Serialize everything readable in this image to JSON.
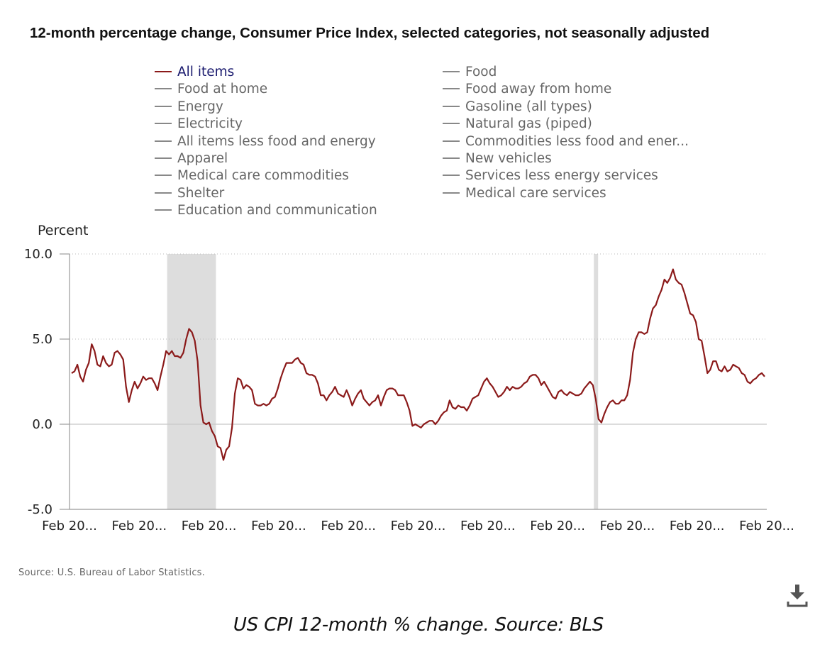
{
  "title": "12-month percentage change, Consumer Price Index, selected categories, not seasonally adjusted",
  "legend": {
    "left": [
      "All items",
      "Food at home",
      "Energy",
      "Electricity",
      "All items less food and energy",
      "Apparel",
      "Medical care commodities",
      "Shelter",
      "Education and communication"
    ],
    "right": [
      "Food",
      "Food away from home",
      "Gasoline (all types)",
      "Natural gas (piped)",
      "Commodities less food and ener...",
      "New vehicles",
      "Services less energy services",
      "Medical care services"
    ],
    "active": "All items"
  },
  "colors": {
    "series": "#8b1a1a",
    "inactive": "#888888",
    "recession": "#dddddd",
    "axis": "#bbbbbb",
    "active_text": "#1a1a6e"
  },
  "source": "Source: U.S. Bureau of Labor Statistics.",
  "caption": "US CPI 12-month % change. Source: BLS",
  "download_icon": "download-icon",
  "chart_data": {
    "type": "line",
    "ylabel": "Percent",
    "ylim": [
      -5,
      10
    ],
    "yticks": [
      "10.0",
      "5.0",
      "0.0",
      "-5.0"
    ],
    "ytick_values": [
      10,
      5,
      0,
      -5
    ],
    "grid": "dotted horizontal",
    "x_tick_labels": [
      "Feb 20...",
      "Feb 20...",
      "Feb 20...",
      "Feb 20...",
      "Feb 20...",
      "Feb 20...",
      "Feb 20...",
      "Feb 20...",
      "Feb 20...",
      "Feb 20...",
      "Feb 20..."
    ],
    "recession_bands": [
      [
        0.14,
        0.21
      ],
      [
        0.752,
        0.758
      ]
    ],
    "series": [
      {
        "name": "All items",
        "values": [
          3.0,
          3.1,
          3.5,
          2.8,
          2.5,
          3.2,
          3.6,
          4.7,
          4.3,
          3.5,
          3.4,
          4.0,
          3.6,
          3.4,
          3.5,
          4.2,
          4.3,
          4.1,
          3.8,
          2.2,
          1.3,
          2.0,
          2.5,
          2.1,
          2.4,
          2.8,
          2.6,
          2.7,
          2.7,
          2.4,
          2.0,
          2.8,
          3.5,
          4.3,
          4.1,
          4.3,
          4.0,
          4.0,
          3.9,
          4.2,
          5.0,
          5.6,
          5.4,
          4.9,
          3.7,
          1.1,
          0.1,
          0.0,
          0.1,
          -0.4,
          -0.7,
          -1.3,
          -1.4,
          -2.1,
          -1.5,
          -1.3,
          -0.2,
          1.8,
          2.7,
          2.6,
          2.1,
          2.3,
          2.2,
          2.0,
          1.2,
          1.1,
          1.1,
          1.2,
          1.1,
          1.2,
          1.5,
          1.6,
          2.1,
          2.7,
          3.2,
          3.6,
          3.6,
          3.6,
          3.8,
          3.9,
          3.6,
          3.5,
          3.0,
          2.9,
          2.9,
          2.8,
          2.4,
          1.7,
          1.7,
          1.4,
          1.7,
          1.9,
          2.2,
          1.8,
          1.7,
          1.6,
          2.0,
          1.6,
          1.1,
          1.5,
          1.8,
          2.0,
          1.5,
          1.3,
          1.1,
          1.3,
          1.4,
          1.7,
          1.1,
          1.6,
          2.0,
          2.1,
          2.1,
          2.0,
          1.7,
          1.7,
          1.7,
          1.3,
          0.8,
          -0.1,
          0.0,
          -0.1,
          -0.2,
          0.0,
          0.1,
          0.2,
          0.2,
          0.0,
          0.2,
          0.5,
          0.7,
          0.8,
          1.4,
          1.0,
          0.9,
          1.1,
          1.0,
          1.0,
          0.8,
          1.1,
          1.5,
          1.6,
          1.7,
          2.1,
          2.5,
          2.7,
          2.4,
          2.2,
          1.9,
          1.6,
          1.7,
          1.9,
          2.2,
          2.0,
          2.2,
          2.1,
          2.1,
          2.2,
          2.4,
          2.5,
          2.8,
          2.9,
          2.9,
          2.7,
          2.3,
          2.5,
          2.2,
          1.9,
          1.6,
          1.5,
          1.9,
          2.0,
          1.8,
          1.7,
          1.9,
          1.8,
          1.7,
          1.7,
          1.8,
          2.1,
          2.3,
          2.5,
          2.3,
          1.5,
          0.3,
          0.1,
          0.6,
          1.0,
          1.3,
          1.4,
          1.2,
          1.2,
          1.4,
          1.4,
          1.7,
          2.6,
          4.2,
          5.0,
          5.4,
          5.4,
          5.3,
          5.4,
          6.2,
          6.8,
          7.0,
          7.5,
          7.9,
          8.5,
          8.3,
          8.6,
          9.1,
          8.5,
          8.3,
          8.2,
          7.7,
          7.1,
          6.5,
          6.4,
          6.0,
          5.0,
          4.9,
          4.0,
          3.0,
          3.2,
          3.7,
          3.7,
          3.2,
          3.1,
          3.4,
          3.1,
          3.2,
          3.5,
          3.4,
          3.3,
          3.0,
          2.9,
          2.5,
          2.4,
          2.6,
          2.7,
          2.9,
          3.0,
          2.8
        ]
      }
    ]
  }
}
